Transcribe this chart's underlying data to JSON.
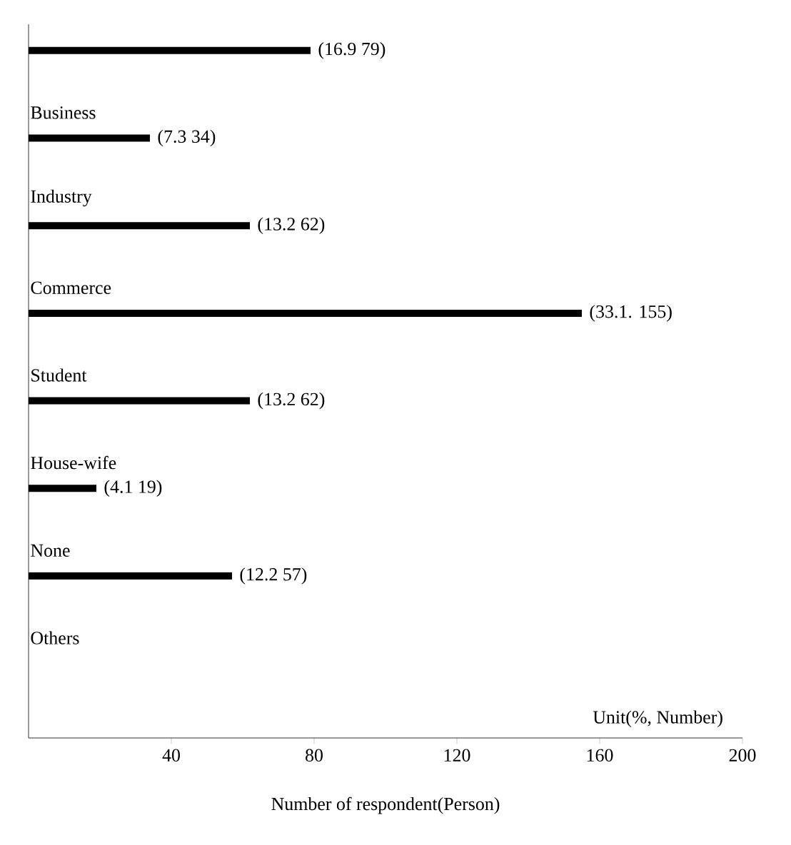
{
  "chart_data": {
    "type": "bar",
    "orientation": "horizontal",
    "categories": [
      null,
      "Business",
      "Industry",
      "Commerce",
      "Student",
      "House-wife",
      "None",
      "Others"
    ],
    "values": [
      79,
      34,
      62,
      155,
      62,
      19,
      57,
      null
    ],
    "value_labels": [
      "(16.9 79)",
      "(7.3 34)",
      "(13.2 62)",
      "(33.1. 155)",
      "(13.2 62)",
      "(4.1 19)",
      "(12.2 57)",
      null
    ],
    "color": "#000000",
    "xlim": [
      0,
      200
    ],
    "xticks": [
      40,
      80,
      120,
      160,
      200
    ],
    "xlabel": "Number of respondent(Person)",
    "annotations": [
      "Unit(%, Number)"
    ]
  }
}
